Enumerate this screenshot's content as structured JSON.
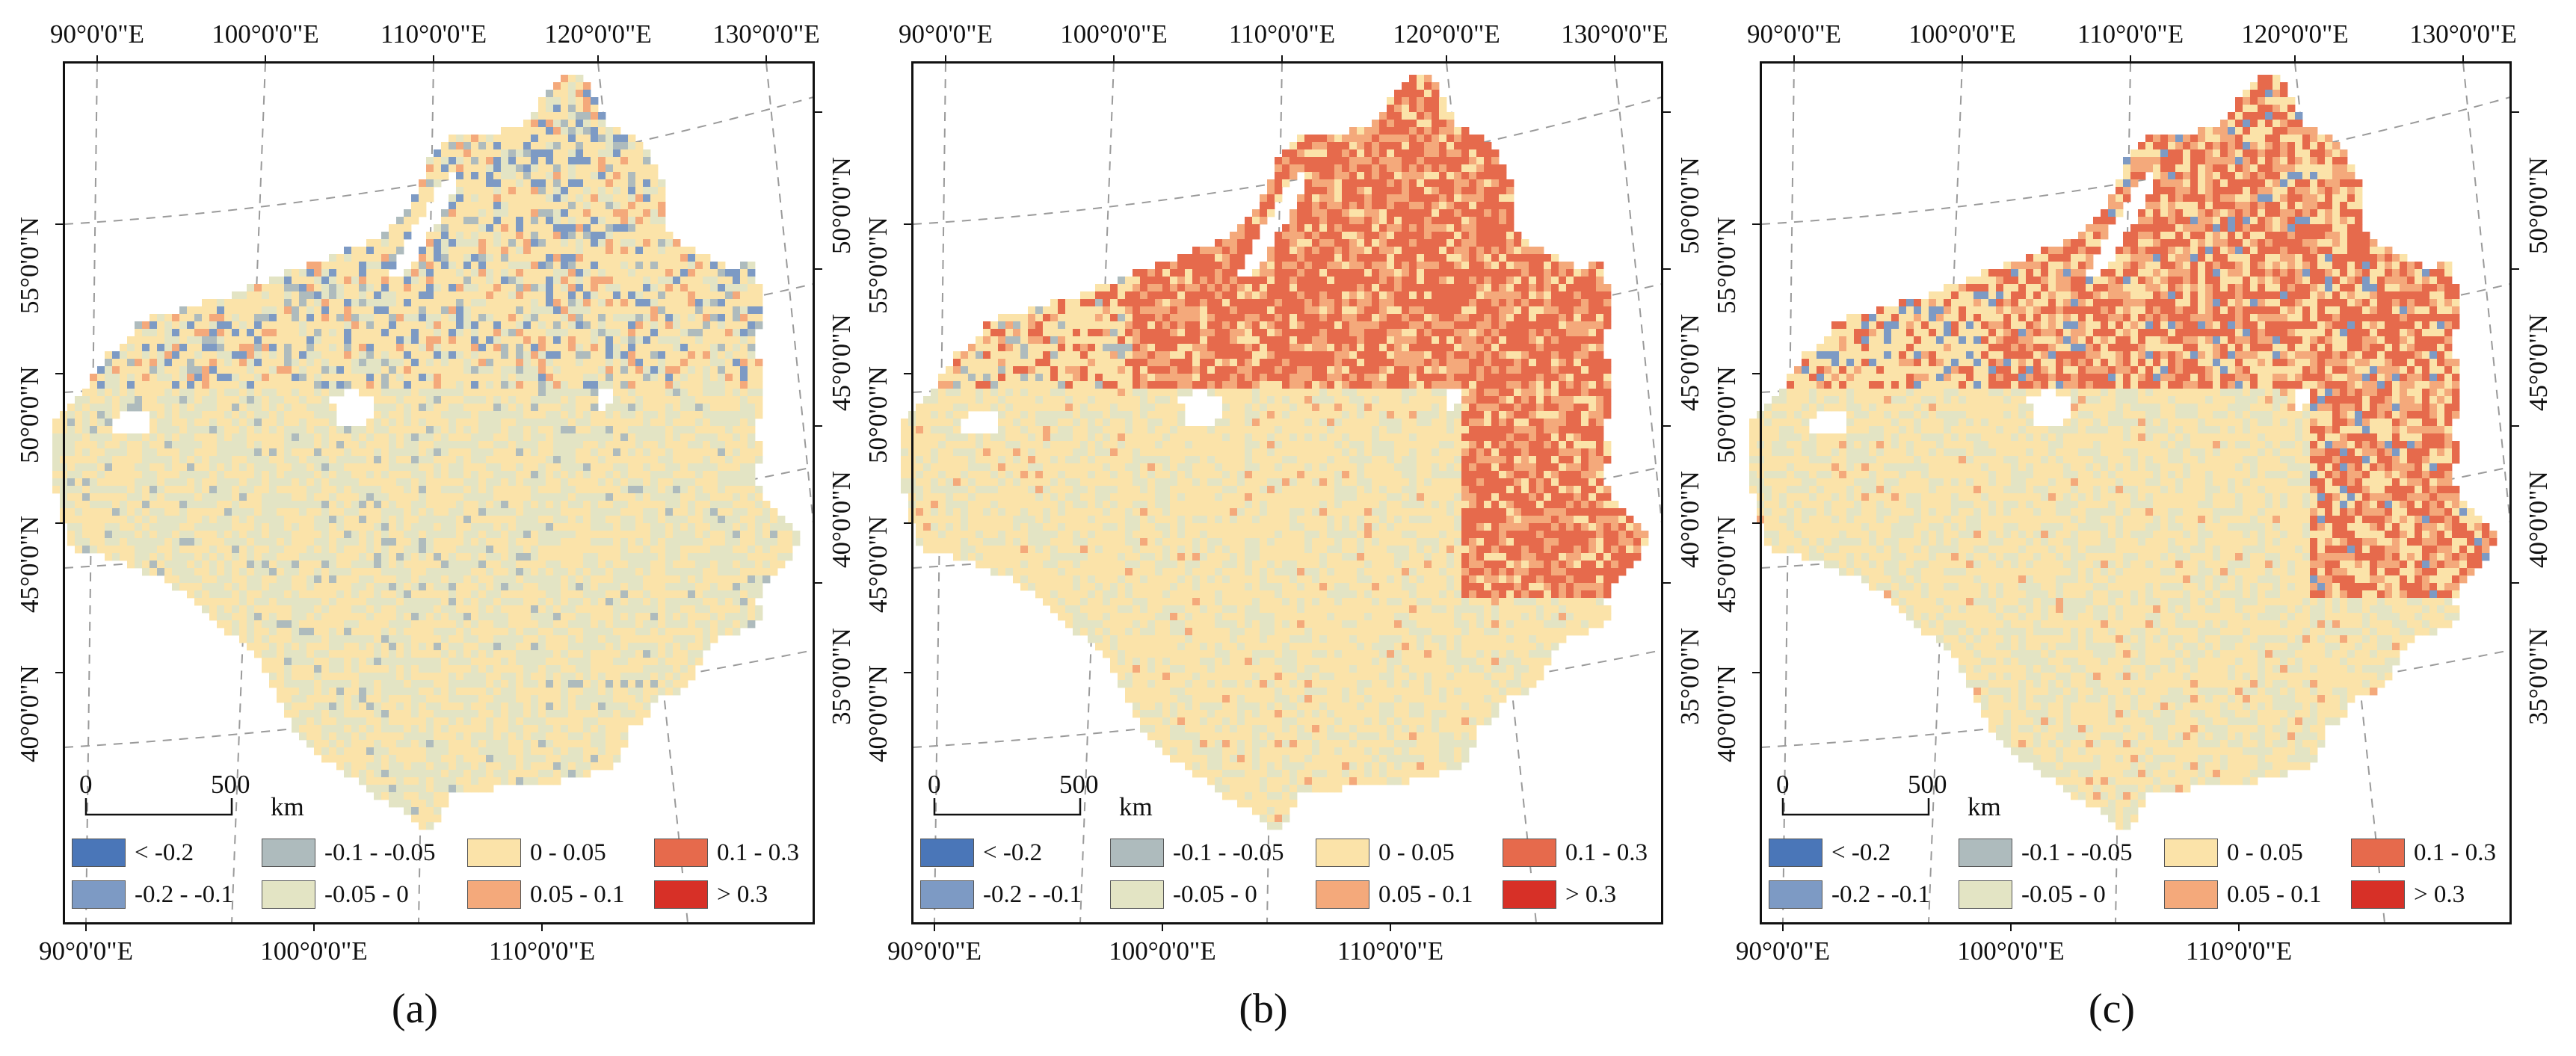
{
  "panels": [
    {
      "caption": "(a)",
      "top_labels": [
        "90°0'0\"E",
        "100°0'0\"E",
        "110°0'0\"E",
        "120°0'0\"E",
        "130°0'0\"E"
      ],
      "bottom_labels": [
        "90°0'0\"E",
        "100°0'0\"E",
        "110°0'0\"E"
      ],
      "left_labels": [
        "55°0'0\"N",
        "50°0'0\"N",
        "45°0'0\"N",
        "40°0'0\"N"
      ],
      "right_labels": [
        "50°0'0\"N",
        "45°0'0\"N",
        "40°0'0\"N",
        "35°0'0\"N"
      ],
      "north_intensity": "mixed"
    },
    {
      "caption": "(b)",
      "top_labels": [
        "90°0'0\"E",
        "100°0'0\"E",
        "110°0'0\"E",
        "120°0'0\"E",
        "130°0'0\"E"
      ],
      "bottom_labels": [
        "90°0'0\"E",
        "100°0'0\"E",
        "110°0'0\"E"
      ],
      "left_labels": [
        "55°0'0\"N",
        "50°0'0\"N",
        "45°0'0\"N",
        "40°0'0\"N"
      ],
      "right_labels": [
        "50°0'0\"N",
        "45°0'0\"N",
        "40°0'0\"N",
        "35°0'0\"N"
      ],
      "north_intensity": "strong"
    },
    {
      "caption": "(c)",
      "top_labels": [
        "90°0'0\"E",
        "100°0'0\"E",
        "110°0'0\"E",
        "120°0'0\"E",
        "130°0'0\"E"
      ],
      "bottom_labels": [
        "90°0'0\"E",
        "100°0'0\"E",
        "110°0'0\"E"
      ],
      "left_labels": [
        "55°0'0\"N",
        "50°0'0\"N",
        "45°0'0\"N",
        "40°0'0\"N"
      ],
      "right_labels": [
        "50°0'0\"N",
        "45°0'0\"N",
        "40°0'0\"N",
        "35°0'0\"N"
      ],
      "north_intensity": "medium"
    }
  ],
  "scale_bar": {
    "start": "0",
    "end": "500",
    "unit": "km"
  },
  "legend": [
    {
      "label": "< -0.2",
      "color": "#4a76b8"
    },
    {
      "label": "-0.2 - -0.1",
      "color": "#7d9ac4"
    },
    {
      "label": "-0.1 - -0.05",
      "color": "#aebbbd"
    },
    {
      "label": "-0.05 - 0",
      "color": "#e3e4c4"
    },
    {
      "label": "0 - 0.05",
      "color": "#fbe3a9"
    },
    {
      "label": "0.05 - 0.1",
      "color": "#f4a97b"
    },
    {
      "label": "0.1 - 0.3",
      "color": "#e66a4c"
    },
    {
      "label": "> 0.3",
      "color": "#d73027"
    }
  ]
}
